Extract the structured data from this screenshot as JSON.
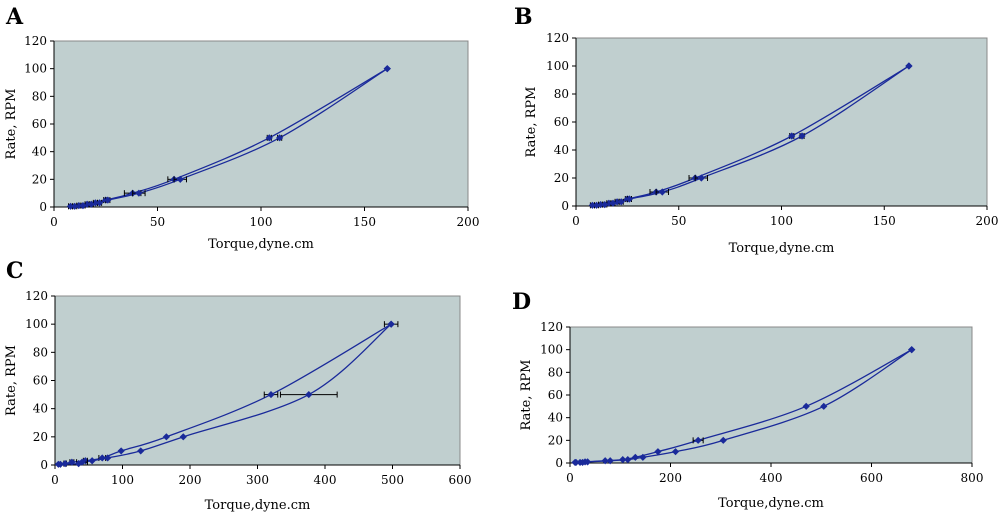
{
  "chart_data": [
    {
      "type": "line",
      "panel_label": "A",
      "xlabel": "Torque,dyne.cm",
      "ylabel": "Rate, RPM",
      "xlim": [
        0,
        200
      ],
      "ylim": [
        0,
        120
      ],
      "xticks": [
        0,
        50,
        100,
        150,
        200
      ],
      "yticks": [
        0,
        20,
        40,
        60,
        80,
        100,
        120
      ],
      "grid": false,
      "series": [
        {
          "x": [
            8,
            12,
            16,
            20,
            25,
            38,
            58,
            104,
            161
          ],
          "y": [
            0.5,
            1,
            2,
            3,
            5,
            10,
            20,
            50,
            100
          ],
          "xerr": [
            1,
            1,
            1,
            1,
            1,
            4,
            3,
            1,
            0
          ]
        },
        {
          "x": [
            10,
            14,
            18,
            22,
            26,
            41,
            61,
            109,
            161
          ],
          "y": [
            0.5,
            1,
            2,
            3,
            5,
            10,
            20,
            50,
            100
          ],
          "xerr": [
            1,
            1,
            1,
            1,
            1,
            3,
            3,
            1,
            0
          ]
        }
      ]
    },
    {
      "type": "line",
      "panel_label": "B",
      "xlabel": "Torque,dyne.cm",
      "ylabel": "Rate, RPM",
      "xlim": [
        0,
        200
      ],
      "ylim": [
        0,
        120
      ],
      "xticks": [
        0,
        50,
        100,
        150,
        200
      ],
      "yticks": [
        0,
        20,
        40,
        60,
        80,
        100,
        120
      ],
      "grid": false,
      "series": [
        {
          "x": [
            8,
            12,
            16,
            20,
            25,
            39,
            58,
            105,
            162
          ],
          "y": [
            0.5,
            1,
            2,
            3,
            5,
            10,
            20,
            50,
            100
          ],
          "xerr": [
            1,
            1,
            1,
            1,
            1,
            3,
            3,
            1,
            0
          ]
        },
        {
          "x": [
            10,
            14,
            18,
            22,
            26,
            42,
            61,
            110,
            162
          ],
          "y": [
            0.5,
            1,
            2,
            3,
            5,
            10,
            20,
            50,
            100
          ],
          "xerr": [
            1,
            1,
            1,
            1,
            1,
            3,
            3,
            1,
            0
          ]
        }
      ]
    },
    {
      "type": "line",
      "panel_label": "C",
      "xlabel": "Torque,dyne.cm",
      "ylabel": "Rate, RPM",
      "xlim": [
        0,
        600
      ],
      "ylim": [
        0,
        120
      ],
      "xticks": [
        0,
        100,
        200,
        300,
        400,
        500,
        600
      ],
      "yticks": [
        0,
        20,
        40,
        60,
        80,
        100,
        120
      ],
      "grid": false,
      "series": [
        {
          "x": [
            5,
            15,
            25,
            45,
            70,
            98,
            165,
            320,
            498
          ],
          "y": [
            0.5,
            1,
            2,
            3,
            5,
            10,
            20,
            50,
            100
          ],
          "xerr": [
            0,
            2,
            3,
            3,
            5,
            0,
            0,
            10,
            10
          ]
        },
        {
          "x": [
            8,
            35,
            40,
            55,
            78,
            127,
            190,
            376,
            498
          ],
          "y": [
            0.5,
            1,
            2,
            3,
            5,
            10,
            20,
            50,
            100
          ],
          "xerr": [
            0,
            0,
            8,
            0,
            0,
            0,
            0,
            42,
            0
          ]
        }
      ]
    },
    {
      "type": "line",
      "panel_label": "D",
      "xlabel": "Torque,dyne.cm",
      "ylabel": "Rate, RPM",
      "xlim": [
        0,
        800
      ],
      "ylim": [
        0,
        120
      ],
      "xticks": [
        0,
        200,
        400,
        600,
        800
      ],
      "yticks": [
        0,
        20,
        40,
        60,
        80,
        100,
        120
      ],
      "grid": false,
      "series": [
        {
          "x": [
            10,
            20,
            30,
            70,
            105,
            130,
            175,
            255,
            470,
            680
          ],
          "y": [
            0.5,
            0.5,
            1,
            2,
            3,
            5,
            10,
            20,
            50,
            100
          ],
          "xerr": [
            0,
            0,
            0,
            0,
            0,
            0,
            0,
            10,
            0,
            0
          ]
        },
        {
          "x": [
            12,
            25,
            35,
            80,
            115,
            145,
            210,
            305,
            505,
            680
          ],
          "y": [
            0.5,
            0.5,
            1,
            2,
            3,
            5,
            10,
            20,
            50,
            100
          ],
          "xerr": [
            0,
            0,
            0,
            0,
            0,
            0,
            0,
            0,
            0,
            0
          ]
        }
      ]
    }
  ]
}
